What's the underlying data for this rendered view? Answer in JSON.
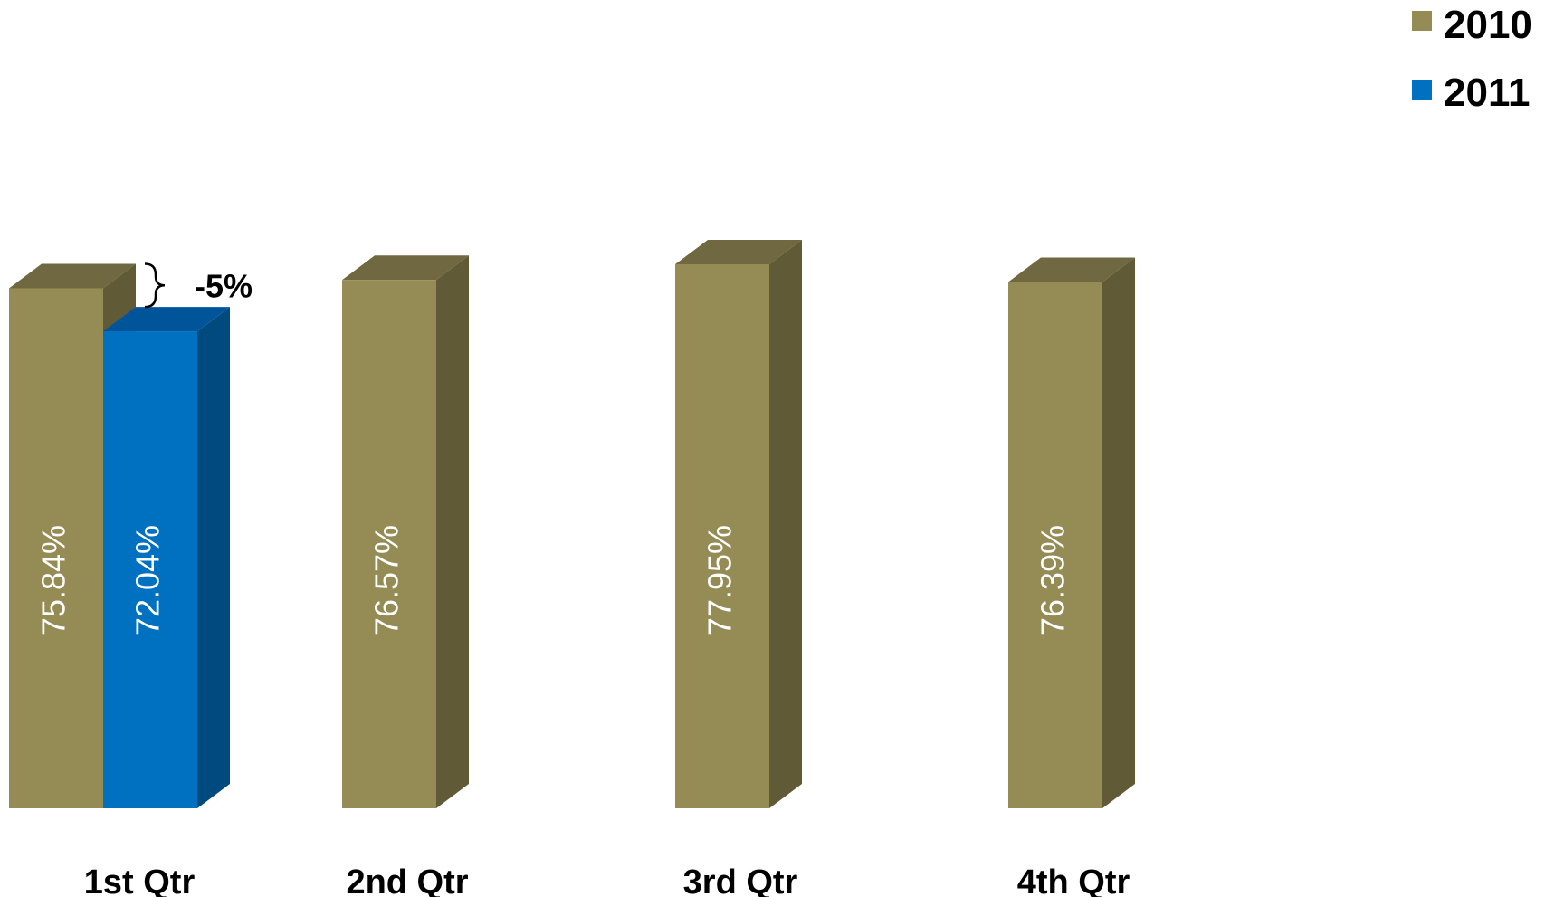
{
  "chart_data": {
    "type": "bar",
    "style": "3d-column",
    "categories": [
      "1st Qtr",
      "2nd Qtr",
      "3rd Qtr",
      "4th Qtr"
    ],
    "series": [
      {
        "name": "2010",
        "color": "#958b55",
        "values": [
          75.84,
          76.57,
          77.95,
          76.39
        ]
      },
      {
        "name": "2011",
        "color": "#0070c0",
        "values": [
          72.04,
          null,
          null,
          null
        ]
      }
    ],
    "value_labels": {
      "2010": [
        "75.84%",
        "76.57%",
        "77.95%",
        "76.39%"
      ],
      "2011": [
        "72.04%",
        "",
        "",
        ""
      ]
    },
    "annotation": {
      "text": "-5%",
      "category": "1st Qtr"
    },
    "legend_position": "top-right",
    "grid": false,
    "axes_visible": false
  }
}
